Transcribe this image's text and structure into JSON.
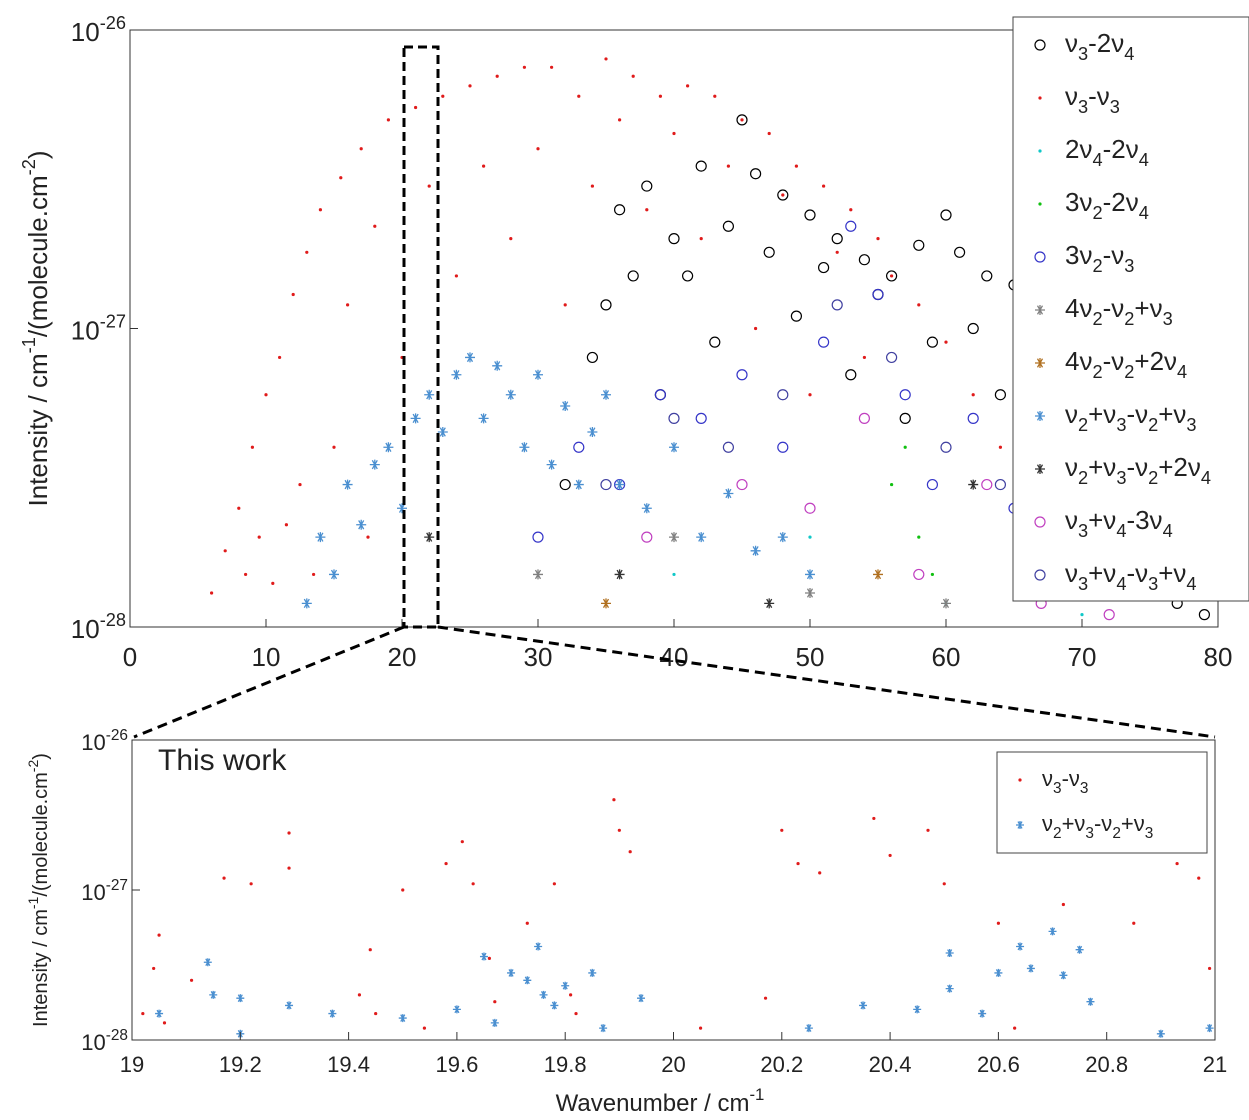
{
  "chart_data": [
    {
      "type": "scatter",
      "log_y": true,
      "ylabel": "Intensity / cm-1/(molecule.cm-2)",
      "xlim": [
        0,
        80
      ],
      "xticks": [
        0,
        10,
        20,
        30,
        40,
        50,
        60,
        70,
        80
      ],
      "ylim": [
        1e-28,
        1e-26
      ],
      "yticks": [
        {
          "value": 1e-28,
          "label": "10",
          "exponent": "-28"
        },
        {
          "value": 1e-27,
          "label": "10",
          "exponent": "-27"
        },
        {
          "value": 1e-26,
          "label": "10",
          "exponent": "-26"
        }
      ],
      "legend": "upper right",
      "series": [
        {
          "name": "ν3-2ν4",
          "color": "#000000",
          "marker": "circle",
          "x": [
            32,
            34,
            35,
            36,
            37,
            38,
            39,
            40,
            41,
            42,
            43,
            44,
            45,
            46,
            47,
            48,
            49,
            50,
            51,
            52,
            53,
            54,
            55,
            56,
            57,
            58,
            59,
            60,
            61,
            62,
            63,
            64,
            65,
            66,
            67,
            68,
            69,
            70,
            71,
            72,
            73,
            74,
            75,
            76,
            77,
            78,
            79
          ],
          "values": [
            3e-28,
            8e-28,
            1.2e-27,
            2.5e-27,
            1.5e-27,
            3e-27,
            6e-28,
            2e-27,
            1.5e-27,
            3.5e-27,
            9e-28,
            2.2e-27,
            5e-27,
            3.3e-27,
            1.8e-27,
            2.8e-27,
            1.1e-27,
            2.4e-27,
            1.6e-27,
            2e-27,
            7e-28,
            1.7e-27,
            1.3e-27,
            1.5e-27,
            5e-28,
            1.9e-27,
            9e-28,
            2.4e-27,
            1.8e-27,
            1e-27,
            1.5e-27,
            6e-28,
            1.4e-27,
            8e-28,
            1.1e-27,
            4e-28,
            9e-28,
            6e-28,
            3e-28,
            7e-28,
            2e-28,
            4e-28,
            1.5e-28,
            2.5e-28,
            1.2e-28,
            1.8e-28,
            1.1e-28
          ]
        },
        {
          "name": "ν3-ν3",
          "color": "#e01b1b",
          "marker": "dot",
          "x": [
            6,
            7,
            8,
            8.5,
            9,
            9.5,
            10,
            10.5,
            11,
            11.5,
            12,
            12.5,
            13,
            13.5,
            14,
            15,
            15.5,
            16,
            17,
            17.5,
            18,
            19,
            20,
            21,
            22,
            23,
            24,
            25,
            26,
            27,
            28,
            29,
            30,
            31,
            32,
            33,
            34,
            35,
            36,
            37,
            38,
            39,
            40,
            41,
            42,
            43,
            44,
            45,
            46,
            47,
            48,
            49,
            50,
            51,
            52,
            53,
            54,
            55,
            56,
            58,
            60,
            62,
            64
          ],
          "values": [
            1.3e-28,
            1.8e-28,
            2.5e-28,
            1.5e-28,
            4e-28,
            2e-28,
            6e-28,
            1.4e-28,
            8e-28,
            2.2e-28,
            1.3e-27,
            3e-28,
            1.8e-27,
            1.5e-28,
            2.5e-27,
            4e-28,
            3.2e-27,
            1.2e-27,
            4e-27,
            2e-28,
            2.2e-27,
            5e-27,
            8e-28,
            5.5e-27,
            3e-27,
            6e-27,
            1.5e-27,
            6.5e-27,
            3.5e-27,
            7e-27,
            2e-27,
            7.5e-27,
            4e-27,
            7.5e-27,
            1.2e-27,
            6e-27,
            3e-27,
            8e-27,
            5e-27,
            7e-27,
            2.5e-27,
            6e-27,
            4.5e-27,
            6.5e-27,
            2e-27,
            6e-27,
            3.5e-27,
            5e-27,
            1e-27,
            4.5e-27,
            2.8e-27,
            3.5e-27,
            6e-28,
            3e-27,
            1.8e-27,
            2.5e-27,
            8e-28,
            2e-27,
            1.5e-27,
            1.2e-27,
            9e-28,
            6e-28,
            4e-28
          ]
        },
        {
          "name": "2ν4-2ν4",
          "color": "#10c8c8",
          "marker": "dot",
          "x": [
            40,
            50,
            60,
            70
          ],
          "values": [
            1.5e-28,
            2e-28,
            1.2e-28,
            1.1e-28
          ]
        },
        {
          "name": "3ν2-2ν4",
          "color": "#10c010",
          "marker": "dot",
          "x": [
            56,
            57,
            58,
            59,
            68,
            69
          ],
          "values": [
            3e-28,
            4e-28,
            2e-28,
            1.5e-28,
            2e-28,
            1.3e-28
          ]
        },
        {
          "name": "3ν2-ν3",
          "color": "#3535c8",
          "marker": "circle",
          "x": [
            30,
            33,
            36,
            39,
            42,
            45,
            48,
            51,
            53,
            55,
            57,
            59,
            62,
            65,
            68,
            71
          ],
          "values": [
            2e-28,
            4e-28,
            3e-28,
            6e-28,
            5e-28,
            7e-28,
            4e-28,
            9e-28,
            2.2e-27,
            1.3e-27,
            6e-28,
            3e-28,
            5e-28,
            2.5e-28,
            3e-28,
            1.5e-28
          ]
        },
        {
          "name": "4ν2-ν2+ν3",
          "color": "#808080",
          "marker": "asterisk",
          "x": [
            30,
            40,
            50,
            60
          ],
          "values": [
            1.5e-28,
            2e-28,
            1.3e-28,
            1.2e-28
          ]
        },
        {
          "name": "4ν2-ν2+2ν4",
          "color": "#b07020",
          "marker": "asterisk",
          "x": [
            35,
            55,
            66
          ],
          "values": [
            1.2e-28,
            1.5e-28,
            1.3e-28
          ]
        },
        {
          "name": "ν2+ν3-ν2+ν3",
          "color": "#4a8fd0",
          "marker": "asterisk",
          "x": [
            13,
            14,
            15,
            16,
            17,
            18,
            19,
            20,
            21,
            22,
            23,
            24,
            25,
            26,
            27,
            28,
            29,
            30,
            31,
            32,
            33,
            34,
            35,
            36,
            38,
            40,
            42,
            44,
            46,
            48,
            50
          ],
          "values": [
            1.2e-28,
            2e-28,
            1.5e-28,
            3e-28,
            2.2e-28,
            3.5e-28,
            4e-28,
            2.5e-28,
            5e-28,
            6e-28,
            4.5e-28,
            7e-28,
            8e-28,
            5e-28,
            7.5e-28,
            6e-28,
            4e-28,
            7e-28,
            3.5e-28,
            5.5e-28,
            3e-28,
            4.5e-28,
            6e-28,
            3e-28,
            2.5e-28,
            4e-28,
            2e-28,
            2.8e-28,
            1.8e-28,
            2e-28,
            1.5e-28
          ]
        },
        {
          "name": "ν2+ν3-ν2+2ν4",
          "color": "#333333",
          "marker": "asterisk",
          "x": [
            22,
            36,
            47,
            62,
            75
          ],
          "values": [
            2e-28,
            1.5e-28,
            1.2e-28,
            3e-28,
            2e-28
          ]
        },
        {
          "name": "ν3+ν4-3ν4",
          "color": "#c040c0",
          "marker": "circle",
          "x": [
            38,
            45,
            50,
            54,
            58,
            63,
            67,
            72
          ],
          "values": [
            2e-28,
            3e-28,
            2.5e-28,
            5e-28,
            1.5e-28,
            3e-28,
            1.2e-28,
            1.1e-28
          ]
        },
        {
          "name": "ν3+ν4-ν3+ν4",
          "color": "#4040a0",
          "marker": "circle",
          "x": [
            35,
            40,
            44,
            48,
            52,
            56,
            60,
            64,
            68
          ],
          "values": [
            3e-28,
            5e-28,
            4e-28,
            6e-28,
            1.2e-27,
            8e-28,
            4e-28,
            3e-28,
            2e-28
          ]
        }
      ]
    },
    {
      "type": "scatter",
      "log_y": true,
      "ylabel": "Intensity / cm-1/(molecule.cm-2)",
      "xlabel": "Wavenumber / cm-1",
      "annotation": "This work",
      "xlim": [
        19,
        21
      ],
      "xticks": [
        19,
        19.2,
        19.4,
        19.6,
        19.8,
        20,
        20.2,
        20.4,
        20.6,
        20.8,
        21
      ],
      "ylim": [
        1e-28,
        1e-26
      ],
      "yticks": [
        {
          "value": 1e-28,
          "label": "10",
          "exponent": "-28"
        },
        {
          "value": 1e-27,
          "label": "10",
          "exponent": "-27"
        },
        {
          "value": 1e-26,
          "label": "10",
          "exponent": "-26"
        }
      ],
      "legend": "upper right",
      "series": [
        {
          "name": "ν3-ν3",
          "color": "#e01b1b",
          "marker": "dot",
          "x": [
            19.02,
            19.04,
            19.05,
            19.06,
            19.11,
            19.17,
            19.22,
            19.29,
            19.29,
            19.42,
            19.44,
            19.45,
            19.5,
            19.54,
            19.58,
            19.61,
            19.63,
            19.66,
            19.67,
            19.73,
            19.78,
            19.81,
            19.82,
            19.89,
            19.9,
            19.92,
            20.05,
            20.17,
            20.2,
            20.23,
            20.27,
            20.37,
            20.4,
            20.47,
            20.5,
            20.57,
            20.6,
            20.63,
            20.72,
            20.85,
            20.93,
            20.97,
            20.99
          ],
          "values": [
            1.5e-28,
            3e-28,
            5e-28,
            1.3e-28,
            2.5e-28,
            1.2e-27,
            1.1e-27,
            2.4e-27,
            1.4e-27,
            2e-28,
            4e-28,
            1.5e-28,
            1e-27,
            1.2e-28,
            1.5e-27,
            2.1e-27,
            1.1e-27,
            3.5e-28,
            1.8e-28,
            6e-28,
            1.1e-27,
            2e-28,
            1.5e-28,
            4e-27,
            2.5e-27,
            1.8e-27,
            1.2e-28,
            1.9e-28,
            2.5e-27,
            1.5e-27,
            1.3e-27,
            3e-27,
            1.7e-27,
            2.5e-27,
            1.1e-27,
            1.5e-28,
            6e-28,
            1.2e-28,
            8e-28,
            6e-28,
            1.5e-27,
            1.2e-27,
            3e-28
          ]
        },
        {
          "name": "ν2+ν3-ν2+ν3",
          "color": "#4a8fd0",
          "marker": "asterisk",
          "x": [
            19.05,
            19.14,
            19.15,
            19.2,
            19.2,
            19.29,
            19.37,
            19.5,
            19.6,
            19.65,
            19.67,
            19.7,
            19.73,
            19.75,
            19.76,
            19.78,
            19.8,
            19.85,
            19.87,
            19.94,
            20.25,
            20.35,
            20.45,
            20.51,
            20.51,
            20.57,
            20.6,
            20.64,
            20.66,
            20.7,
            20.72,
            20.75,
            20.77,
            20.9,
            20.99
          ],
          "values": [
            1.5e-28,
            3.3e-28,
            2e-28,
            1.9e-28,
            1.1e-28,
            1.7e-28,
            1.5e-28,
            1.4e-28,
            1.6e-28,
            3.6e-28,
            1.3e-28,
            2.8e-28,
            2.5e-28,
            4.2e-28,
            2e-28,
            1.7e-28,
            2.3e-28,
            2.8e-28,
            1.2e-28,
            1.9e-28,
            1.2e-28,
            1.7e-28,
            1.6e-28,
            3.8e-28,
            2.2e-28,
            1.5e-28,
            2.8e-28,
            4.2e-28,
            3e-28,
            5.3e-28,
            2.7e-28,
            4e-28,
            1.8e-28,
            1.1e-28,
            1.2e-28
          ]
        }
      ]
    }
  ]
}
